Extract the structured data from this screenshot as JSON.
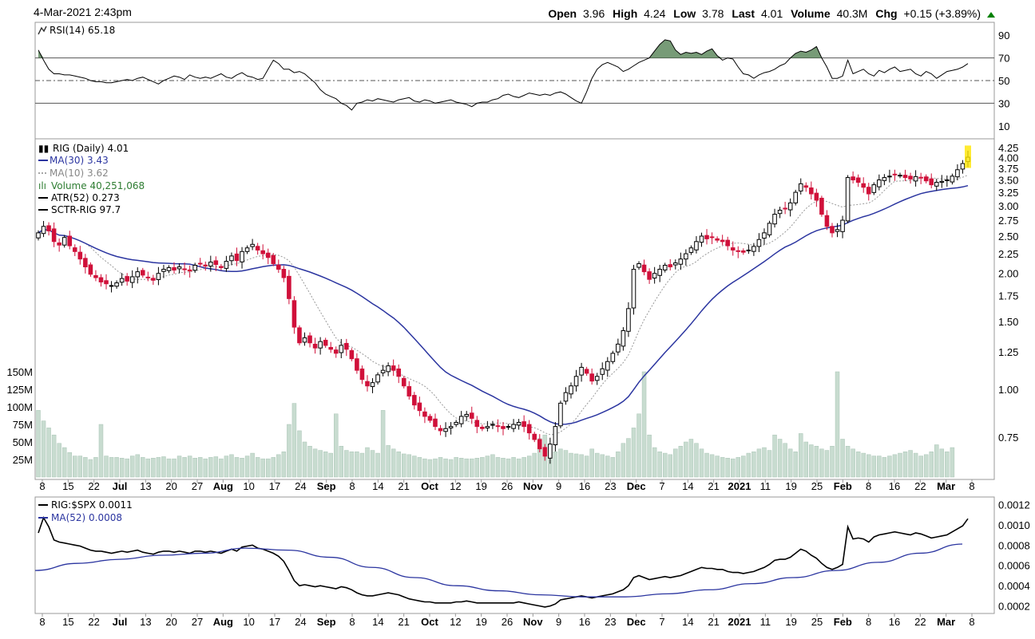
{
  "header": {
    "datetime": "4-Mar-2021 2:43pm",
    "open_label": "Open",
    "open": "3.96",
    "high_label": "High",
    "high": "4.24",
    "low_label": "Low",
    "low": "3.78",
    "last_label": "Last",
    "last": "4.01",
    "volume_label": "Volume",
    "volume": "40.3M",
    "chg_label": "Chg",
    "chg": "+0.15 (+3.89%)",
    "chg_icon": "up-triangle-icon",
    "up_color": "#008000"
  },
  "rsi_panel": {
    "legend": "RSI(14) 65.18",
    "fill_color": "#4a7a4a"
  },
  "price_panel": {
    "legend_main": "RIG (Daily) 4.01",
    "legend_ma30": "MA(30) 3.43",
    "legend_ma10": "MA(10) 3.62",
    "legend_volume": "Volume 40,251,068",
    "legend_atr": "ATR(52) 0.273",
    "legend_sctr": "SCTR-RIG 97.7",
    "ma30_color": "#2b35a0",
    "ma10_color": "#999999",
    "volume_legend_color": "#2e7d32",
    "up_candle_color": "#000000",
    "down_candle_color": "#d0103a",
    "volume_bar_color": "#c8dcd0"
  },
  "ratio_panel": {
    "legend_ratio": "RIG:$SPX 0.0011",
    "legend_ma52": "MA(52) 0.0008"
  },
  "chart_data": [
    {
      "type": "line",
      "panel": "RSI(14)",
      "y_ticks": [
        "90",
        "70",
        "50",
        "30",
        "10"
      ],
      "reference_lines": [
        70,
        50,
        30
      ],
      "series": [
        {
          "name": "RSI(14)",
          "values": [
            77,
            68,
            60,
            56,
            56,
            55,
            55,
            54,
            53,
            52,
            50,
            49,
            49,
            48,
            48,
            49,
            50,
            51,
            50,
            52,
            53,
            51,
            49,
            47,
            50,
            52,
            54,
            53,
            51,
            55,
            53,
            52,
            53,
            52,
            54,
            56,
            53,
            52,
            55,
            57,
            54,
            53,
            51,
            52,
            60,
            68,
            65,
            60,
            60,
            57,
            58,
            56,
            52,
            48,
            42,
            38,
            36,
            34,
            30,
            28,
            24,
            30,
            31,
            33,
            32,
            34,
            33,
            32,
            31,
            33,
            34,
            35,
            32,
            31,
            33,
            32,
            30,
            31,
            32,
            33,
            31,
            30,
            29,
            27,
            30,
            31,
            31,
            33,
            34,
            37,
            38,
            36,
            35,
            37,
            39,
            38,
            37,
            38,
            37,
            39,
            40,
            38,
            35,
            32,
            30,
            40,
            52,
            60,
            64,
            66,
            64,
            62,
            58,
            60,
            63,
            66,
            68,
            70,
            76,
            82,
            86,
            85,
            77,
            73,
            75,
            74,
            75,
            73,
            76,
            78,
            72,
            68,
            70,
            69,
            62,
            56,
            55,
            52,
            55,
            57,
            58,
            60,
            63,
            65,
            70,
            74,
            76,
            75,
            77,
            80,
            70,
            62,
            52,
            52,
            54,
            68,
            56,
            58,
            60,
            56,
            54,
            59,
            57,
            60,
            62,
            58,
            59,
            60,
            56,
            54,
            58,
            56,
            52,
            55,
            58,
            59,
            60,
            62,
            65
          ]
        }
      ],
      "ylim": [
        0,
        100
      ]
    },
    {
      "type": "candlestick",
      "panel": "RIG (Daily)",
      "x_ticks": [
        "8",
        "15",
        "22",
        "Jul",
        "13",
        "20",
        "27",
        "Aug",
        "10",
        "17",
        "24",
        "Sep",
        "8",
        "14",
        "21",
        "Oct",
        "12",
        "19",
        "26",
        "Nov",
        "9",
        "16",
        "23",
        "Dec",
        "7",
        "14",
        "21",
        "2021",
        "11",
        "19",
        "25",
        "Feb",
        "8",
        "16",
        "22",
        "Mar",
        "8"
      ],
      "y_ticks": [
        "4.25",
        "4.00",
        "3.75",
        "3.50",
        "3.25",
        "3.00",
        "2.75",
        "2.50",
        "2.25",
        "2.00",
        "1.75",
        "1.50",
        "1.25",
        "1.00",
        "0.75"
      ],
      "y_scale": "log",
      "ylim": [
        0.62,
        4.35
      ],
      "volume_ticks": [
        "150M",
        "125M",
        "100M",
        "75M",
        "50M",
        "25M"
      ],
      "close": [
        2.55,
        2.65,
        2.58,
        2.42,
        2.37,
        2.48,
        2.36,
        2.28,
        2.18,
        2.08,
        1.99,
        1.95,
        1.9,
        1.88,
        1.86,
        1.89,
        1.94,
        1.91,
        1.96,
        2.02,
        1.98,
        1.95,
        1.92,
        2.0,
        2.05,
        2.07,
        2.04,
        2.08,
        2.05,
        2.03,
        2.1,
        2.12,
        2.09,
        2.14,
        2.11,
        2.07,
        2.15,
        2.22,
        2.16,
        2.28,
        2.33,
        2.38,
        2.3,
        2.25,
        2.2,
        2.12,
        2.05,
        1.95,
        1.72,
        1.45,
        1.32,
        1.36,
        1.32,
        1.28,
        1.33,
        1.3,
        1.27,
        1.24,
        1.3,
        1.27,
        1.2,
        1.12,
        1.06,
        1.02,
        1.04,
        1.09,
        1.12,
        1.15,
        1.12,
        1.08,
        1.02,
        0.96,
        0.91,
        0.88,
        0.85,
        0.83,
        0.8,
        0.78,
        0.79,
        0.8,
        0.82,
        0.85,
        0.86,
        0.84,
        0.8,
        0.79,
        0.8,
        0.81,
        0.8,
        0.79,
        0.8,
        0.81,
        0.82,
        0.8,
        0.77,
        0.74,
        0.7,
        0.67,
        0.72,
        0.8,
        0.92,
        0.98,
        1.02,
        1.08,
        1.14,
        1.1,
        1.05,
        1.08,
        1.13,
        1.18,
        1.24,
        1.31,
        1.42,
        1.62,
        2.05,
        2.12,
        2.02,
        1.93,
        2.0,
        2.05,
        2.1,
        2.08,
        2.13,
        2.18,
        2.25,
        2.33,
        2.42,
        2.5,
        2.46,
        2.48,
        2.44,
        2.42,
        2.36,
        2.3,
        2.28,
        2.27,
        2.3,
        2.35,
        2.45,
        2.55,
        2.7,
        2.85,
        2.92,
        2.95,
        3.05,
        3.25,
        3.42,
        3.35,
        3.22,
        3.1,
        2.85,
        2.65,
        2.55,
        2.6,
        2.75,
        3.55,
        3.5,
        3.45,
        3.35,
        3.22,
        3.4,
        3.5,
        3.55,
        3.58,
        3.62,
        3.6,
        3.55,
        3.52,
        3.57,
        3.55,
        3.48,
        3.4,
        3.45,
        3.47,
        3.5,
        3.58,
        3.72,
        3.86,
        4.01
      ],
      "volume_millions": [
        95,
        80,
        70,
        60,
        48,
        42,
        35,
        30,
        30,
        28,
        25,
        28,
        75,
        30,
        28,
        28,
        27,
        26,
        30,
        32,
        28,
        26,
        27,
        28,
        29,
        26,
        26,
        30,
        28,
        30,
        27,
        28,
        26,
        28,
        29,
        26,
        30,
        32,
        28,
        27,
        30,
        34,
        28,
        26,
        26,
        28,
        32,
        36,
        75,
        105,
        66,
        50,
        44,
        40,
        38,
        36,
        34,
        90,
        44,
        38,
        36,
        36,
        34,
        42,
        38,
        34,
        95,
        45,
        40,
        36,
        33,
        32,
        30,
        28,
        26,
        25,
        26,
        28,
        26,
        25,
        28,
        27,
        26,
        26,
        27,
        28,
        30,
        32,
        28,
        27,
        26,
        28,
        26,
        28,
        30,
        34,
        55,
        60,
        45,
        36,
        40,
        38,
        34,
        33,
        32,
        30,
        40,
        34,
        32,
        30,
        28,
        36,
        48,
        55,
        70,
        90,
        150,
        60,
        42,
        36,
        34,
        32,
        40,
        44,
        50,
        54,
        48,
        40,
        34,
        32,
        30,
        28,
        27,
        26,
        28,
        30,
        34,
        36,
        40,
        42,
        38,
        60,
        54,
        48,
        40,
        36,
        62,
        50,
        46,
        44,
        40,
        38,
        44,
        150,
        54,
        44,
        40,
        36,
        34,
        32,
        30,
        30,
        28,
        30,
        32,
        34,
        36,
        38,
        34,
        30,
        32,
        36,
        46,
        40,
        36,
        42
      ]
    },
    {
      "type": "line",
      "panel": "RIG:$SPX",
      "y_ticks": [
        "0.0012",
        "0.0010",
        "0.0008",
        "0.0006",
        "0.0004",
        "0.0002"
      ],
      "ylim": [
        0.00015,
        0.00125
      ],
      "series": [
        {
          "name": "RIG:$SPX",
          "values": [
            0.00092,
            0.00107,
            0.00098,
            0.00085,
            0.00083,
            0.00082,
            0.00081,
            0.0008,
            0.00079,
            0.00077,
            0.00075,
            0.00074,
            0.00074,
            0.00073,
            0.00072,
            0.00073,
            0.00074,
            0.00073,
            0.00074,
            0.00075,
            0.00073,
            0.00072,
            0.00071,
            0.00073,
            0.00074,
            0.00074,
            0.00073,
            0.00074,
            0.00073,
            0.00072,
            0.00074,
            0.00074,
            0.00073,
            0.00074,
            0.00073,
            0.00072,
            0.00074,
            0.00076,
            0.00074,
            0.00078,
            0.00079,
            0.0008,
            0.00077,
            0.00076,
            0.00074,
            0.00072,
            0.00069,
            0.00064,
            0.00055,
            0.00045,
            0.0004,
            0.00041,
            0.0004,
            0.00039,
            0.0004,
            0.00039,
            0.00038,
            0.00037,
            0.00039,
            0.00038,
            0.00036,
            0.00033,
            0.00031,
            0.0003,
            0.0003,
            0.00031,
            0.00032,
            0.00033,
            0.00032,
            0.00031,
            0.00029,
            0.00027,
            0.00026,
            0.00025,
            0.00024,
            0.00024,
            0.00023,
            0.00023,
            0.00023,
            0.00023,
            0.00024,
            0.00024,
            0.00025,
            0.00024,
            0.00023,
            0.00023,
            0.00023,
            0.00023,
            0.00023,
            0.00023,
            0.00023,
            0.00023,
            0.00024,
            0.00023,
            0.00022,
            0.00021,
            0.0002,
            0.00019,
            0.0002,
            0.00022,
            0.00026,
            0.00027,
            0.00028,
            0.00029,
            0.0003,
            0.00029,
            0.00028,
            0.00029,
            0.0003,
            0.00031,
            0.00032,
            0.00034,
            0.00036,
            0.0004,
            0.00048,
            0.0005,
            0.00048,
            0.00046,
            0.00047,
            0.00048,
            0.00049,
            0.00048,
            0.00049,
            0.0005,
            0.00052,
            0.00054,
            0.00056,
            0.00058,
            0.00057,
            0.00057,
            0.00056,
            0.00056,
            0.00054,
            0.00053,
            0.00053,
            0.00052,
            0.00053,
            0.00054,
            0.00056,
            0.00058,
            0.00061,
            0.00065,
            0.00066,
            0.00066,
            0.00068,
            0.00072,
            0.00076,
            0.00074,
            0.0007,
            0.00067,
            0.00062,
            0.00058,
            0.00056,
            0.00058,
            0.00061,
            0.00098,
            0.00086,
            0.00087,
            0.00086,
            0.00083,
            0.00088,
            0.0009,
            0.00091,
            0.00092,
            0.00093,
            0.00092,
            0.00091,
            0.0009,
            0.00092,
            0.00091,
            0.00089,
            0.00087,
            0.00088,
            0.00089,
            0.0009,
            0.00093,
            0.00096,
            0.00099,
            0.00106
          ]
        },
        {
          "name": "MA(52)",
          "values": [
            0.00055,
            0.00062,
            0.00066,
            0.0007,
            0.00072,
            0.00077,
            0.00075,
            0.00068,
            0.00058,
            0.00048,
            0.0004,
            0.00035,
            0.00031,
            0.00029,
            0.00029,
            0.00032,
            0.00036,
            0.00042,
            0.00048,
            0.00055,
            0.00063,
            0.00072,
            0.00081
          ]
        }
      ]
    }
  ]
}
